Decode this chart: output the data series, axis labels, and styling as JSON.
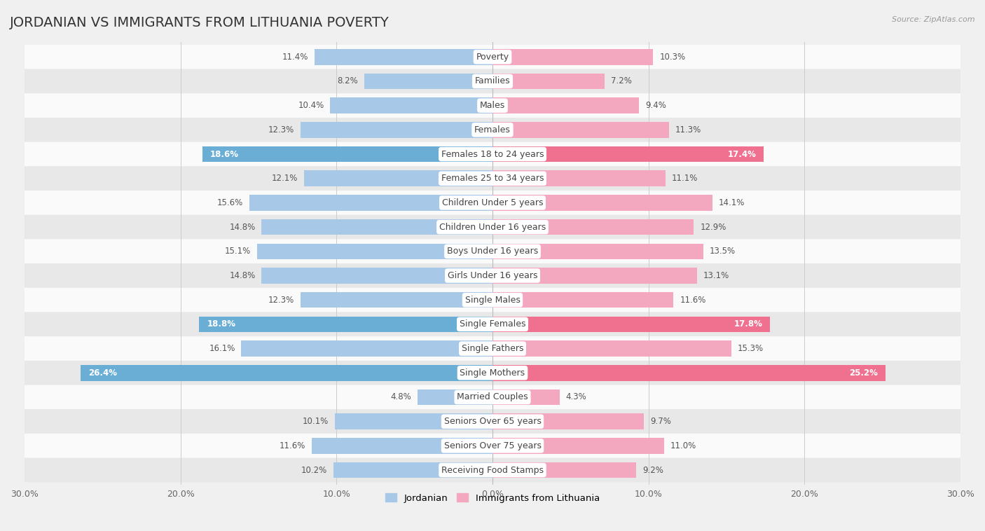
{
  "title": "JORDANIAN VS IMMIGRANTS FROM LITHUANIA POVERTY",
  "source": "Source: ZipAtlas.com",
  "categories": [
    "Poverty",
    "Families",
    "Males",
    "Females",
    "Females 18 to 24 years",
    "Females 25 to 34 years",
    "Children Under 5 years",
    "Children Under 16 years",
    "Boys Under 16 years",
    "Girls Under 16 years",
    "Single Males",
    "Single Females",
    "Single Fathers",
    "Single Mothers",
    "Married Couples",
    "Seniors Over 65 years",
    "Seniors Over 75 years",
    "Receiving Food Stamps"
  ],
  "jordanian": [
    11.4,
    8.2,
    10.4,
    12.3,
    18.6,
    12.1,
    15.6,
    14.8,
    15.1,
    14.8,
    12.3,
    18.8,
    16.1,
    26.4,
    4.8,
    10.1,
    11.6,
    10.2
  ],
  "lithuania": [
    10.3,
    7.2,
    9.4,
    11.3,
    17.4,
    11.1,
    14.1,
    12.9,
    13.5,
    13.1,
    11.6,
    17.8,
    15.3,
    25.2,
    4.3,
    9.7,
    11.0,
    9.2
  ],
  "jordanian_color": "#a8c8e8",
  "lithuania_color": "#f4a8c0",
  "jordanian_highlight_color": "#6aaed6",
  "lithuania_highlight_color": "#f07090",
  "highlight_rows": [
    4,
    11,
    13
  ],
  "xlim": 30,
  "background_color": "#f0f0f0",
  "row_light_color": "#fafafa",
  "row_dark_color": "#e8e8e8",
  "title_fontsize": 14,
  "label_fontsize": 9,
  "value_fontsize": 8.5,
  "legend_fontsize": 9.5,
  "axis_label_fontsize": 9
}
